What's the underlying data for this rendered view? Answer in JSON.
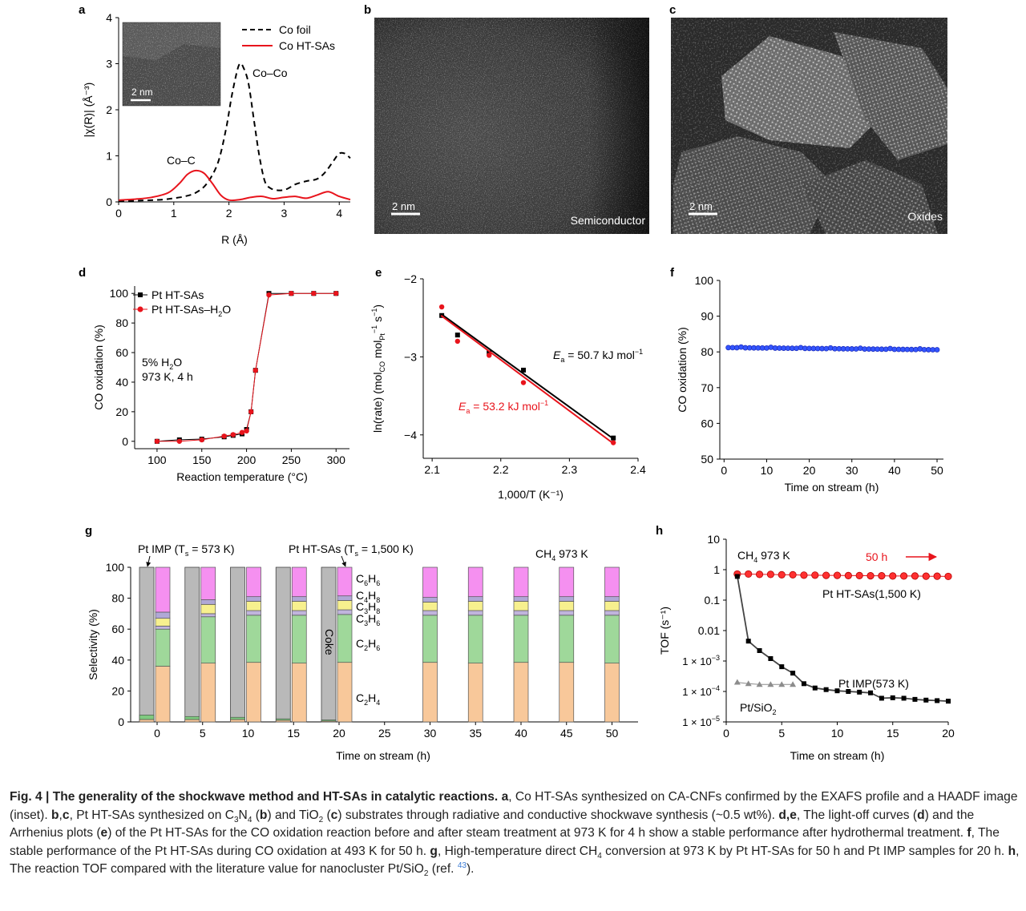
{
  "panels": {
    "a": {
      "label": "a",
      "ylabel": "|χ(R)| (Å⁻³)",
      "xlabel": "R (Å)",
      "xticks": [
        "0",
        "1",
        "2",
        "3",
        "4"
      ],
      "yticks": [
        "0",
        "1",
        "2",
        "3",
        "4"
      ],
      "legend": [
        "Co foil",
        "Co HT-SAs"
      ],
      "annotations": [
        "Co–Co",
        "Co–C"
      ],
      "inset_scale": "2 nm"
    },
    "b": {
      "label": "b",
      "scale": "2 nm",
      "caption": "Semiconductor"
    },
    "c": {
      "label": "c",
      "scale": "2 nm",
      "caption": "Oxides"
    },
    "d": {
      "label": "d",
      "ylabel": "CO oxidation (%)",
      "xlabel": "Reaction temperature (°C)",
      "xticks": [
        "100",
        "150",
        "200",
        "250",
        "300"
      ],
      "yticks": [
        "0",
        "20",
        "40",
        "60",
        "80",
        "100"
      ],
      "legend": [
        "Pt HT-SAs",
        "Pt HT-SAs–H",
        "2",
        "O"
      ],
      "note_line1": "5%  H",
      "note_sub": "2",
      "note_end": "O",
      "note_line2": "973 K, 4 h"
    },
    "e": {
      "label": "e",
      "ylabel_parts": [
        "ln(rate) (mol",
        "CO",
        " mol",
        "Pt",
        "−1",
        " s",
        "−1",
        ")"
      ],
      "xlabel": "1,000/T (K⁻¹)",
      "xticks": [
        "2.1",
        "2.2",
        "2.3",
        "2.4"
      ],
      "yticks": [
        "−2",
        "−3",
        "−4"
      ],
      "ea_black": "= 50.7 kJ mol",
      "ea_red": "= 53.2 kJ mol",
      "ea_sym": "E",
      "ea_sub": "a",
      "ea_sup": "−1"
    },
    "f": {
      "label": "f",
      "ylabel": "CO oxidation (%)",
      "xlabel": "Time on stream (h)",
      "xticks": [
        "0",
        "10",
        "20",
        "30",
        "40",
        "50"
      ],
      "yticks": [
        "50",
        "60",
        "70",
        "80",
        "90",
        "100"
      ]
    },
    "g": {
      "label": "g",
      "ylabel": "Selectivity (%)",
      "xlabel": "Time on stream (h)",
      "xticks": [
        "0",
        "5",
        "10",
        "15",
        "20",
        "25",
        "30",
        "35",
        "40",
        "45",
        "50"
      ],
      "yticks": [
        "0",
        "20",
        "40",
        "60",
        "80",
        "100"
      ],
      "title_imp": "Pt IMP (T",
      "title_imp_sub": "s",
      "title_imp_end": " = 573 K)",
      "title_ht": "Pt HT-SAs (T",
      "title_ht_sub": "s",
      "title_ht_end": " = 1,500 K)",
      "cond": "CH",
      "cond_sub": "4",
      "cond_end": " 973 K",
      "coke": "Coke",
      "species": [
        {
          "m": "C",
          "s1": "6",
          "m2": "H",
          "s2": "6"
        },
        {
          "m": "C",
          "s1": "4",
          "m2": "H",
          "s2": "8"
        },
        {
          "m": "C",
          "s1": "3",
          "m2": "H",
          "s2": "8"
        },
        {
          "m": "C",
          "s1": "3",
          "m2": "H",
          "s2": "6"
        },
        {
          "m": "C",
          "s1": "2",
          "m2": "H",
          "s2": "6"
        },
        {
          "m": "C",
          "s1": "2",
          "m2": "H",
          "s2": "4"
        }
      ]
    },
    "h": {
      "label": "h",
      "ylabel": "TOF (s⁻¹)",
      "xlabel": "Time on stream (h)",
      "xticks": [
        "0",
        "5",
        "10",
        "15",
        "20"
      ],
      "ytick_plain": [
        "10",
        "1",
        "0.1",
        "0.01"
      ],
      "ytick_sci": [
        "−3",
        "−4",
        "−5"
      ],
      "ytick_sci_base": "1 × 10",
      "cond": "CH",
      "cond_sub": "4",
      "cond_end": " 973 K",
      "duration": "50 h",
      "series_labels": [
        "Pt HT-SAs(1,500 K)",
        "Pt IMP(573 K)",
        "Pt/SiO",
        "2"
      ]
    }
  },
  "caption": {
    "fig": "Fig. 4 | The generality of the shockwave method and HT-SAs in catalytic reactions.",
    "a_label": "a",
    "a_text": ", Co HT-SAs synthesized on CA-CNFs confirmed by the EXAFS profile and a HAADF image (inset).",
    "bc_label": "b",
    "bc_comma": ",",
    "bc_label2": "c",
    "bc_text1": ", Pt HT-SAs synthesized on C",
    "bc_sub1": "3",
    "bc_text2": "N",
    "bc_sub2": "4",
    "bc_text3": " (",
    "bc_text4": ") and TiO",
    "bc_sub3": "2",
    "bc_text5": " (",
    "bc_text6": ") substrates through radiative and conductive shockwave synthesis (~0.5 wt%).",
    "de_text1": ", The light-off curves (",
    "de_text2": ") and the Arrhenius plots (",
    "de_text3": ") of the Pt HT-SAs for the CO oxidation reaction before and after steam treatment at 973 K for 4 h show a stable performance after hydrothermal treatment.",
    "f_text": ", The stable performance of the Pt HT-SAs during CO oxidation at 493 K for 50 h.",
    "g_text1": ", High-temperature direct CH",
    "g_sub": "4",
    "g_text2": " conversion at 973 K by Pt HT-SAs for 50 h and Pt IMP samples for 20 h.",
    "h_text1": ", The reaction TOF compared with the literature value for nanocluster Pt/SiO",
    "h_sub": "2",
    "h_text2": " (ref. ",
    "h_ref": "43",
    "h_text3": ")."
  },
  "chart_data": [
    {
      "panel": "a",
      "type": "line",
      "xlabel": "R (Å)",
      "ylabel": "|χ(R)| (Å⁻³)",
      "xlim": [
        0,
        4.2
      ],
      "ylim": [
        0,
        4
      ],
      "series": [
        {
          "name": "Co foil",
          "color": "#000000",
          "style": "dashed",
          "x": [
            0,
            0.4,
            0.8,
            1.0,
            1.2,
            1.4,
            1.6,
            1.8,
            1.95,
            2.05,
            2.15,
            2.2,
            2.25,
            2.35,
            2.45,
            2.55,
            2.65,
            2.75,
            2.9,
            3.05,
            3.2,
            3.4,
            3.6,
            3.75,
            3.9,
            4.0,
            4.1,
            4.2
          ],
          "y": [
            0.02,
            0.03,
            0.05,
            0.08,
            0.12,
            0.2,
            0.4,
            0.85,
            1.6,
            2.3,
            2.85,
            3.0,
            2.95,
            2.6,
            1.8,
            1.0,
            0.45,
            0.3,
            0.25,
            0.28,
            0.38,
            0.45,
            0.5,
            0.65,
            0.9,
            1.05,
            1.05,
            0.95
          ]
        },
        {
          "name": "Co HT-SAs",
          "color": "#e8141c",
          "style": "solid",
          "x": [
            0,
            0.3,
            0.6,
            0.9,
            1.1,
            1.25,
            1.4,
            1.55,
            1.7,
            1.85,
            2.0,
            2.2,
            2.4,
            2.6,
            2.8,
            3.0,
            3.2,
            3.4,
            3.6,
            3.8,
            4.0,
            4.2
          ],
          "y": [
            0.04,
            0.06,
            0.1,
            0.2,
            0.4,
            0.6,
            0.68,
            0.62,
            0.4,
            0.15,
            0.04,
            0.05,
            0.1,
            0.12,
            0.07,
            0.1,
            0.12,
            0.08,
            0.15,
            0.22,
            0.12,
            0.05
          ]
        }
      ]
    },
    {
      "panel": "d",
      "type": "line",
      "xlabel": "Reaction temperature (°C)",
      "ylabel": "CO oxidation (%)",
      "xlim": [
        75,
        315
      ],
      "ylim": [
        -5,
        105
      ],
      "series": [
        {
          "name": "Pt HT-SAs",
          "color": "#000000",
          "marker": "square",
          "x": [
            100,
            125,
            150,
            175,
            185,
            195,
            200,
            205,
            210,
            225,
            250,
            275,
            300
          ],
          "y": [
            0,
            1,
            1.5,
            3,
            4,
            5,
            8,
            20,
            48,
            100,
            100,
            100,
            100
          ]
        },
        {
          "name": "Pt HT-SAs–H2O",
          "color": "#e8141c",
          "marker": "circle",
          "x": [
            100,
            125,
            150,
            175,
            185,
            195,
            200,
            205,
            210,
            225,
            250,
            275,
            300
          ],
          "y": [
            0,
            0,
            1,
            3.5,
            4.5,
            6,
            7,
            20,
            48,
            99,
            100,
            100,
            100
          ]
        }
      ]
    },
    {
      "panel": "e",
      "type": "scatter",
      "xlabel": "1,000/T (K⁻¹)",
      "ylabel": "ln(rate)",
      "xlim": [
        2.1,
        2.4
      ],
      "ylim": [
        -4.3,
        -2
      ],
      "series": [
        {
          "name": "Ea = 50.7 kJ mol−1",
          "color": "#000000",
          "marker": "square",
          "x": [
            2.114,
            2.137,
            2.183,
            2.233,
            2.364
          ],
          "y": [
            -2.47,
            -2.72,
            -2.95,
            -3.17,
            -4.04
          ],
          "fit": [
            [
              2.113,
              -2.45
            ],
            [
              2.364,
              -4.05
            ]
          ]
        },
        {
          "name": "Ea = 53.2 kJ mol−1",
          "color": "#e8141c",
          "marker": "circle",
          "x": [
            2.114,
            2.137,
            2.183,
            2.233,
            2.364
          ],
          "y": [
            -2.36,
            -2.8,
            -2.98,
            -3.33,
            -4.1
          ],
          "fit": [
            [
              2.113,
              -2.47
            ],
            [
              2.364,
              -4.11
            ]
          ]
        }
      ]
    },
    {
      "panel": "f",
      "type": "scatter",
      "xlabel": "Time on stream (h)",
      "ylabel": "CO oxidation (%)",
      "xlim": [
        0,
        51
      ],
      "ylim": [
        50,
        100
      ],
      "series": [
        {
          "name": "Pt HT-SAs",
          "color": "#1f3fff",
          "x_start": 1,
          "x_end": 50,
          "count": 50,
          "y_start": 81.2,
          "y_end": 80.6
        }
      ]
    },
    {
      "panel": "g",
      "type": "bar",
      "xlabel": "Time on stream (h)",
      "ylabel": "Selectivity (%)",
      "categories": [
        "0",
        "5",
        "10",
        "15",
        "20",
        "25",
        "30",
        "35",
        "40",
        "45",
        "50"
      ],
      "ylim": [
        0,
        100
      ],
      "components": [
        "C2H4",
        "C2H6",
        "C3H6",
        "C3H8",
        "C4H8",
        "C6H6"
      ],
      "colors": {
        "C2H4": "#f8c89a",
        "C2H6": "#9fd89a",
        "C3H6": "#c0b4dc",
        "C3H8": "#f7f08e",
        "C4H8": "#b0a8d6",
        "C6H6": "#f590f0",
        "Coke": "#b9b9b9",
        "Base": "#7fc97f"
      },
      "imp_bars": [
        {
          "t": 0,
          "base_orange": 1.5,
          "base_green": 3.0,
          "coke": 100
        },
        {
          "t": 5,
          "base_orange": 1.5,
          "base_green": 2.0,
          "coke": 100
        },
        {
          "t": 10,
          "base_orange": 1.5,
          "base_green": 1.5,
          "coke": 100
        },
        {
          "t": 15,
          "base_orange": 1.0,
          "base_green": 1.0,
          "coke": 100
        },
        {
          "t": 20,
          "base_orange": 0.5,
          "base_green": 0.8,
          "coke": 100
        }
      ],
      "ht_bars": [
        {
          "t": 0,
          "values": [
            36,
            24,
            2,
            5,
            4,
            29
          ]
        },
        {
          "t": 5,
          "values": [
            38,
            30,
            2,
            6,
            3,
            21
          ]
        },
        {
          "t": 10,
          "values": [
            38.5,
            30.5,
            3,
            6,
            3,
            19
          ]
        },
        {
          "t": 15,
          "values": [
            38,
            31,
            3,
            6,
            3,
            19
          ]
        },
        {
          "t": 20,
          "values": [
            38.5,
            31,
            3,
            6,
            3,
            18.5
          ]
        },
        {
          "t": 30,
          "values": [
            38.5,
            30.5,
            3,
            5.5,
            3,
            19.5
          ]
        },
        {
          "t": 35,
          "values": [
            38,
            31,
            3,
            6,
            3,
            19
          ]
        },
        {
          "t": 40,
          "values": [
            38.5,
            30.5,
            3,
            6,
            3,
            19
          ]
        },
        {
          "t": 45,
          "values": [
            38.5,
            30.5,
            3,
            6,
            3,
            19
          ]
        },
        {
          "t": 50,
          "values": [
            38,
            31,
            3,
            6,
            3,
            19
          ]
        }
      ]
    },
    {
      "panel": "h",
      "type": "line",
      "xlabel": "Time on stream (h)",
      "ylabel": "TOF (s⁻¹)",
      "xlim": [
        0,
        20
      ],
      "ylim": [
        1e-05,
        10
      ],
      "yscale": "log",
      "series": [
        {
          "name": "Pt HT-SAs(1,500 K)",
          "color": "#e8141c",
          "marker": "circle",
          "x": [
            1,
            2,
            3,
            4,
            5,
            6,
            7,
            8,
            9,
            10,
            11,
            12,
            13,
            14,
            15,
            16,
            17,
            18,
            19,
            20
          ],
          "y": [
            0.72,
            0.72,
            0.7,
            0.7,
            0.68,
            0.68,
            0.66,
            0.66,
            0.65,
            0.65,
            0.64,
            0.64,
            0.63,
            0.63,
            0.62,
            0.62,
            0.62,
            0.61,
            0.61,
            0.6
          ]
        },
        {
          "name": "Pt IMP(573 K)",
          "color": "#000000",
          "marker": "square",
          "x": [
            1,
            2,
            3,
            4,
            5,
            6,
            7,
            8,
            9,
            10,
            11,
            12,
            13,
            14,
            15,
            16,
            17,
            18,
            19,
            20
          ],
          "y": [
            0.6,
            0.0045,
            0.0022,
            0.0012,
            0.00065,
            0.0004,
            0.00018,
            0.00013,
            0.000115,
            0.000105,
            0.0001,
            9.5e-05,
            9e-05,
            6e-05,
            6.2e-05,
            6e-05,
            5.5e-05,
            5.2e-05,
            5e-05,
            4.8e-05
          ]
        },
        {
          "name": "Pt/SiO2",
          "color": "#8c8c8c",
          "marker": "triangle",
          "x": [
            1,
            2,
            3,
            4,
            5,
            6
          ],
          "y": [
            0.0002,
            0.00018,
            0.00017,
            0.00017,
            0.00017,
            0.00017
          ]
        }
      ]
    }
  ]
}
